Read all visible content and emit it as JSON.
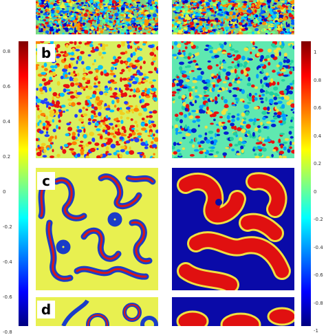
{
  "panel_labels": {
    "b": "b",
    "c": "c",
    "d": "d"
  },
  "left_colorbar": {
    "colormap": "jet",
    "ticks": [
      "0.8",
      "0.6",
      "0.4",
      "0.2",
      "0",
      "-0.2",
      "-0.4",
      "-0.6",
      "-0.8"
    ]
  },
  "right_colorbar": {
    "colormap": "jet",
    "ticks": [
      "1",
      "0.8",
      "0.6",
      "0.4",
      "0.2",
      "0",
      "-0.2",
      "-0.4",
      "-0.6",
      "-0.8",
      "-1"
    ]
  }
}
